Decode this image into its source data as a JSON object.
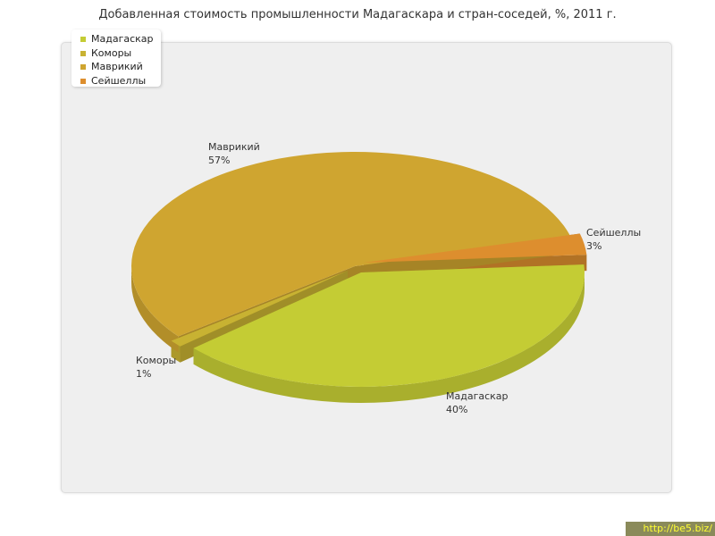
{
  "chart_data": {
    "type": "pie",
    "title": "Добавленная стоимость промышленности Мадагаскара и стран-соседей, %, 2011 г.",
    "slices": [
      {
        "name": "Мадагаскар",
        "value": 40,
        "label": "40%",
        "color": "#c4cc34"
      },
      {
        "name": "Коморы",
        "value": 1,
        "label": "1%",
        "color": "#c8b232"
      },
      {
        "name": "Маврикий",
        "value": 57,
        "label": "57%",
        "color": "#cfa530"
      },
      {
        "name": "Сейшеллы",
        "value": 3,
        "label": "3%",
        "color": "#dd8e2e"
      }
    ],
    "legend": {
      "placement": "top-left"
    },
    "three_d": true,
    "exploded": true
  },
  "watermark": "http://be5.biz/",
  "colors": {
    "plot_background": "#efefef",
    "watermark_text": "#ffff33",
    "watermark_background": "#8a8a5a"
  }
}
